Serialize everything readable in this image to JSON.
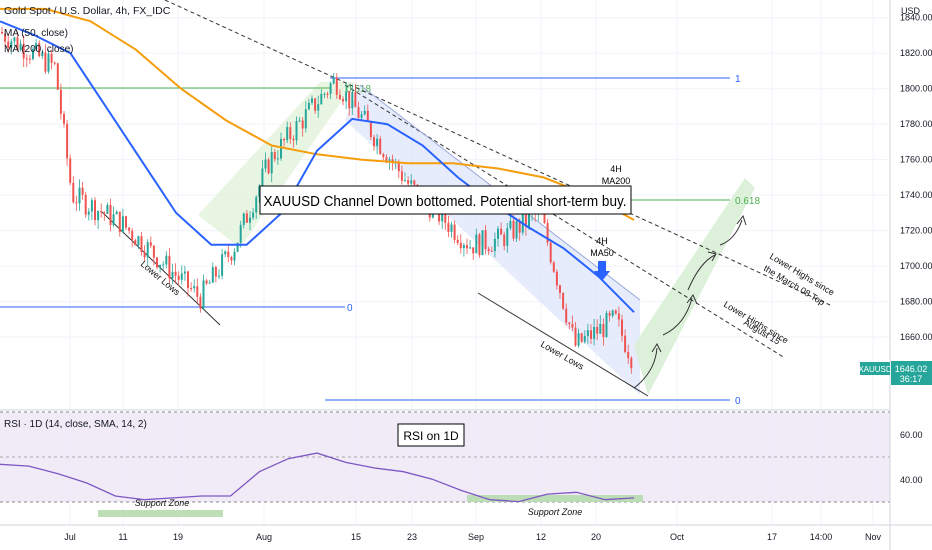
{
  "header": {
    "symbol_line": "Gold Spot / U.S. Dollar, 4h, FX_IDC",
    "ma50_label": "MA (50, close)",
    "ma200_label": "MA (200, close)",
    "currency": "USD"
  },
  "colors": {
    "up": "#26a69a",
    "down": "#ef5350",
    "ma50": "#2962ff",
    "ma200": "#f59d0c",
    "rsi_line": "#7e57c2",
    "rsi_band": "#ede7f6",
    "fib": "#2962ff",
    "fib_618": "#4caf50",
    "channel": "#dde6fb",
    "future_channel": "#d7efd3",
    "price_tag": "#26a69a"
  },
  "price_tag": {
    "price": "1646.02",
    "countdown": "36:17",
    "symbol": "XAUUSD"
  },
  "annotations": {
    "main_title": "XAUUSD Channel Down bottomed. Potential short-term buy.",
    "rsi_title": "RSI on 1D",
    "ma200_label": [
      "4H",
      "MA200"
    ],
    "ma50_label": [
      "4H",
      "MA50"
    ],
    "lower_lows_1": "Lower Lows",
    "lower_lows_2": "Lower Lows",
    "lower_highs_march": [
      "Lower Highs since",
      "the March 08 Top"
    ],
    "lower_highs_aug": [
      "Lower Highs since",
      "August 15"
    ],
    "support_zone_1": "Support Zone",
    "support_zone_2": "Support Zone",
    "fib_first": {
      "top": "0.618",
      "one": "1",
      "zero": "0"
    },
    "fib_second": {
      "top": "0.618",
      "zero": "0"
    }
  },
  "rsi": {
    "label": "RSI · 1D (14, close, SMA, 14, 2)",
    "levels": [
      60,
      40
    ],
    "level_labels": [
      "60.00",
      "40.00"
    ]
  },
  "chart_data": {
    "type": "candlestick",
    "title": "Gold Spot / U.S. Dollar, 4h, FX_IDC",
    "y_ticks": [
      "1840.00",
      "1820.00",
      "1800.00",
      "1780.00",
      "1760.00",
      "1740.00",
      "1720.00",
      "1700.00",
      "1680.00",
      "1660.00"
    ],
    "y_range": [
      1620,
      1850
    ],
    "x_ticks": [
      "Jul",
      "11",
      "19",
      "Aug",
      "15",
      "23",
      "Sep",
      "12",
      "20",
      "Oct",
      "17",
      "14:00",
      "Nov"
    ],
    "price_path": [
      [
        "start",
        1832
      ],
      [
        "Jul",
        1812
      ],
      [
        "Jul",
        1740
      ],
      [
        "11",
        1725
      ],
      [
        "19",
        1682
      ],
      [
        "Aug",
        1712
      ],
      [
        "Aug",
        1760
      ],
      [
        "15",
        1805
      ],
      [
        "23",
        1745
      ],
      [
        "Sep",
        1712
      ],
      [
        "Sep",
        1715
      ],
      [
        "12",
        1730
      ],
      [
        "20",
        1655
      ],
      [
        "20",
        1670
      ],
      [
        "last",
        1646
      ]
    ],
    "ma50_path": [
      1838,
      1830,
      1820,
      1790,
      1760,
      1730,
      1712,
      1712,
      1730,
      1765,
      1783,
      1780,
      1768,
      1750,
      1735,
      1722,
      1710,
      1694,
      1674
    ],
    "ma200_path": [
      1845,
      1845,
      1838,
      1822,
      1800,
      1782,
      1768,
      1763,
      1760,
      1758,
      1758,
      1755,
      1750,
      1740,
      1726
    ],
    "rsi_path": [
      52,
      51,
      47,
      42,
      35,
      33,
      34,
      35,
      35,
      48,
      55,
      58,
      53,
      50,
      48,
      44,
      38,
      33,
      32,
      36,
      37,
      33,
      34
    ]
  }
}
